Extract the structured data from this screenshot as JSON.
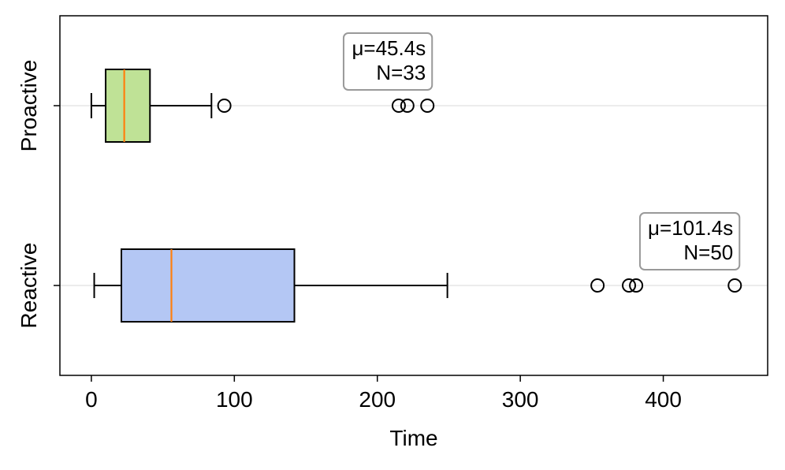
{
  "chart_data": {
    "type": "boxplot",
    "orientation": "horizontal",
    "xlabel": "Time",
    "ylabel": "",
    "xlim": [
      -22,
      473
    ],
    "xticks": [
      0,
      100,
      200,
      300,
      400
    ],
    "grid": "horizontal-light",
    "categories": [
      "Reactive",
      "Proactive"
    ],
    "series": [
      {
        "category": "Reactive",
        "whisker_low": 2,
        "q1": 21,
        "median": 56,
        "q3": 142,
        "whisker_high": 249,
        "outliers": [
          354,
          376,
          381,
          450
        ],
        "annotation": "μ=101.4s\nN=50",
        "color": "#b4c7f4"
      },
      {
        "category": "Proactive",
        "whisker_low": 0,
        "q1": 10,
        "median": 23,
        "q3": 41,
        "whisker_high": 84,
        "outliers": [
          93,
          215,
          221,
          235
        ],
        "annotation": "μ=45.4s\nN=33",
        "color": "#bfe296"
      }
    ],
    "median_color": "#ff7f0e"
  }
}
